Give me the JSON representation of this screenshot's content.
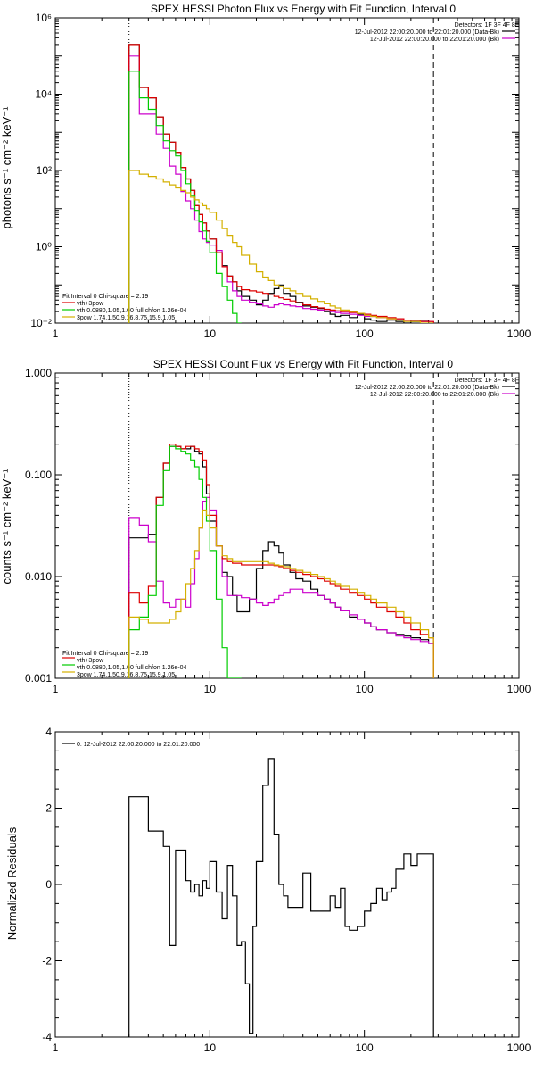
{
  "panels": [
    {
      "id": "photon",
      "title": "SPEX HESSI Photon Flux vs Energy with Fit Function, Interval 0",
      "ylabel": "photons s⁻¹ cm⁻² keV⁻¹",
      "yscale": "log",
      "ylim": [
        0.01,
        1000000
      ],
      "ytick_labels": [
        "10⁻²",
        "10⁰",
        "10²",
        "10⁴",
        "10⁶"
      ],
      "ytick_values": [
        0.01,
        1,
        100,
        10000,
        1000000
      ],
      "detectors_text": "Detectors: 1F 3F 4F 8F",
      "legend_right": [
        {
          "text": "12-Jul-2012 22:00:20.000 to 22:01:20.000 (Data-Bk)",
          "color": "#000000"
        },
        {
          "text": "12-Jul-2012 22:00:20.000 to 22:01:20.000 (Bk)",
          "color": "#cc00cc"
        }
      ],
      "legend_left_header": "Fit Interval 0   Chi-square = 2.19",
      "legend_left": [
        {
          "text": "vth+3pow",
          "color": "#dd0000"
        },
        {
          "text": "vth 0.0880,1.05,1.00  full chfon 1.26e-04",
          "color": "#00cc00"
        },
        {
          "text": "3pow 1.74,1.50,9.16,8.75,15.9,1.05",
          "color": "#d4b000"
        }
      ],
      "vlines": [
        3,
        280
      ]
    },
    {
      "id": "count",
      "title": "SPEX HESSI Count Flux vs Energy with Fit Function, Interval 0",
      "ylabel": "counts s⁻¹ cm⁻² keV⁻¹",
      "yscale": "log",
      "ylim": [
        0.001,
        1
      ],
      "ytick_labels": [
        "0.001",
        "0.010",
        "0.100",
        "1.000"
      ],
      "ytick_values": [
        0.001,
        0.01,
        0.1,
        1
      ],
      "detectors_text": "Detectors: 1F 3F 4F 8F",
      "legend_right": [
        {
          "text": "12-Jul-2012 22:00:20.000 to 22:01:20.000 (Data-Bk)",
          "color": "#000000"
        },
        {
          "text": "12-Jul-2012 22:00:20.000 to 22:01:20.000 (Bk)",
          "color": "#cc00cc"
        }
      ],
      "legend_left_header": "Fit Interval 0   Chi-square = 2.19",
      "legend_left": [
        {
          "text": "vth+3pow",
          "color": "#dd0000"
        },
        {
          "text": "vth 0.0880,1.05,1.00  full chfon 1.26e-04",
          "color": "#00cc00"
        },
        {
          "text": "3pow 1.74,1.50,9.16,8.75,15.9,1.05",
          "color": "#d4b000"
        }
      ],
      "vlines": [
        3,
        280
      ]
    },
    {
      "id": "resid",
      "title": "",
      "ylabel": "Normalized Residuals",
      "yscale": "linear",
      "ylim": [
        -4,
        4
      ],
      "ytick_labels": [
        "-4",
        "-2",
        "0",
        "2",
        "4"
      ],
      "ytick_values": [
        -4,
        -2,
        0,
        2,
        4
      ],
      "legend_resid": "0. 12-Jul-2012 22:00:20.000 to 22:01:20.000"
    }
  ],
  "xtick_labels": [
    "1",
    "10",
    "100",
    "1000"
  ],
  "chart_data": [
    {
      "type": "line",
      "title": "SPEX HESSI Photon Flux vs Energy with Fit Function, Interval 0",
      "xlabel": "",
      "ylabel": "photons s⁻¹ cm⁻² keV⁻¹",
      "xscale": "log",
      "yscale": "log",
      "xlim": [
        1,
        1000
      ],
      "ylim": [
        0.01,
        1000000
      ],
      "bin_edges": [
        3,
        3.5,
        4,
        4.5,
        5,
        5.5,
        6,
        6.5,
        7,
        7.5,
        8,
        8.5,
        9,
        9.5,
        10,
        11,
        12,
        13,
        14,
        15,
        16,
        18,
        20,
        22,
        24,
        26,
        28,
        30,
        33,
        36,
        40,
        45,
        50,
        55,
        60,
        65,
        70,
        80,
        90,
        100,
        110,
        120,
        140,
        160,
        180,
        200,
        230,
        260,
        280
      ],
      "series": [
        {
          "name": "12-Jul-2012 22:00:20.000 to 22:01:20.000 (Data-Bk)",
          "color": "#000000",
          "values": [
            200000,
            15000,
            8000,
            2500,
            900,
            550,
            300,
            120,
            60,
            30,
            12,
            7,
            4.2,
            2.6,
            1.6,
            0.7,
            0.32,
            0.17,
            0.12,
            0.07,
            0.05,
            0.04,
            0.03,
            0.04,
            0.06,
            0.08,
            0.1,
            0.06,
            0.05,
            0.035,
            0.028,
            0.026,
            0.024,
            0.02,
            0.017,
            0.015,
            0.016,
            0.014,
            0.017,
            0.013,
            0.012,
            0.011,
            0.012,
            0.011,
            0.01,
            0.011,
            0.012,
            0.01
          ]
        },
        {
          "name": "12-Jul-2012 22:00:20.000 to 22:01:20.000 (Bk)",
          "color": "#cc00cc",
          "values": [
            100000,
            3000,
            3000,
            900,
            380,
            130,
            80,
            28,
            16,
            10,
            5,
            2.5,
            1.6,
            1.3,
            1.1,
            0.8,
            0.3,
            0.12,
            0.07,
            0.05,
            0.04,
            0.035,
            0.032,
            0.028,
            0.026,
            0.03,
            0.032,
            0.03,
            0.028,
            0.027,
            0.024,
            0.023,
            0.022,
            0.021,
            0.02,
            0.019,
            0.018,
            0.017,
            0.016,
            0.015,
            0.015,
            0.014,
            0.013,
            0.013,
            0.012,
            0.012,
            0.011,
            0.011
          ]
        },
        {
          "name": "vth+3pow",
          "color": "#dd0000",
          "values": [
            200000,
            15000,
            8000,
            2500,
            900,
            550,
            300,
            120,
            60,
            30,
            12,
            7,
            4.2,
            2.6,
            1.6,
            0.7,
            0.3,
            0.17,
            0.12,
            0.09,
            0.075,
            0.07,
            0.065,
            0.06,
            0.055,
            0.05,
            0.046,
            0.042,
            0.038,
            0.034,
            0.03,
            0.027,
            0.025,
            0.023,
            0.022,
            0.021,
            0.02,
            0.019,
            0.018,
            0.017,
            0.016,
            0.015,
            0.014,
            0.013,
            0.012,
            0.012,
            0.011,
            0.011
          ]
        },
        {
          "name": "vth 0.0880,1.05,1.00  full chfon 1.26e-04",
          "color": "#00cc00",
          "values": [
            40000,
            8000,
            4000,
            1500,
            600,
            330,
            240,
            100,
            45,
            22,
            9,
            4.5,
            2.6,
            1.4,
            0.7,
            0.2,
            0.09,
            0.04,
            0.018,
            0.01
          ]
        },
        {
          "name": "3pow 1.74,1.50,9.16,8.75,15.9,1.05",
          "color": "#d4b000",
          "values": [
            100,
            80,
            70,
            60,
            50,
            42,
            35,
            30,
            26,
            20,
            17,
            14,
            12,
            10,
            8,
            5,
            3,
            2,
            1.3,
            1,
            0.6,
            0.35,
            0.22,
            0.16,
            0.13,
            0.1,
            0.09,
            0.08,
            0.07,
            0.06,
            0.05,
            0.043,
            0.037,
            0.032,
            0.028,
            0.025,
            0.022,
            0.02,
            0.018,
            0.016,
            0.015,
            0.014,
            0.013,
            0.012,
            0.011,
            0.011,
            0.01,
            0.01
          ]
        }
      ]
    },
    {
      "type": "line",
      "title": "SPEX HESSI Count Flux vs Energy with Fit Function, Interval 0",
      "xlabel": "",
      "ylabel": "counts s⁻¹ cm⁻² keV⁻¹",
      "xscale": "log",
      "yscale": "log",
      "xlim": [
        1,
        1000
      ],
      "ylim": [
        0.001,
        1
      ],
      "bin_edges": [
        3,
        3.5,
        4,
        4.5,
        5,
        5.5,
        6,
        6.5,
        7,
        7.5,
        8,
        8.5,
        9,
        9.5,
        10,
        11,
        12,
        13,
        14,
        15,
        16,
        18,
        20,
        22,
        24,
        26,
        28,
        30,
        33,
        36,
        40,
        45,
        50,
        55,
        60,
        65,
        70,
        80,
        90,
        100,
        110,
        120,
        140,
        160,
        180,
        200,
        230,
        260,
        280
      ],
      "series": [
        {
          "name": "12-Jul-2012 22:00:20.000 to 22:01:20.000 (Data-Bk)",
          "color": "#000000",
          "values": [
            0.024,
            0.024,
            0.026,
            0.06,
            0.13,
            0.19,
            0.19,
            0.18,
            0.18,
            0.19,
            0.17,
            0.16,
            0.12,
            0.065,
            0.035,
            0.02,
            0.011,
            0.01,
            0.0065,
            0.0045,
            0.0045,
            0.006,
            0.012,
            0.018,
            0.022,
            0.02,
            0.017,
            0.013,
            0.011,
            0.0095,
            0.009,
            0.0075,
            0.0065,
            0.006,
            0.0055,
            0.005,
            0.0046,
            0.004,
            0.0038,
            0.0035,
            0.0032,
            0.003,
            0.0028,
            0.0027,
            0.0026,
            0.0025,
            0.0024,
            0.0022
          ]
        },
        {
          "name": "12-Jul-2012 22:00:20.000 to 22:01:20.000 (Bk)",
          "color": "#cc00cc",
          "values": [
            0.038,
            0.032,
            0.022,
            0.009,
            0.0055,
            0.005,
            0.006,
            0.006,
            0.005,
            0.0085,
            0.015,
            0.03,
            0.055,
            0.06,
            0.045,
            0.02,
            0.01,
            0.0065,
            0.0065,
            0.0065,
            0.0062,
            0.006,
            0.0055,
            0.0052,
            0.0055,
            0.006,
            0.0065,
            0.007,
            0.0075,
            0.0075,
            0.007,
            0.007,
            0.0065,
            0.006,
            0.0055,
            0.005,
            0.0046,
            0.0042,
            0.0038,
            0.0035,
            0.0032,
            0.003,
            0.0028,
            0.0026,
            0.0025,
            0.0024,
            0.0023,
            0.0022
          ]
        },
        {
          "name": "vth+3pow",
          "color": "#dd0000",
          "values": [
            0.007,
            0.0055,
            0.008,
            0.06,
            0.13,
            0.2,
            0.19,
            0.18,
            0.19,
            0.19,
            0.18,
            0.17,
            0.14,
            0.08,
            0.04,
            0.02,
            0.015,
            0.014,
            0.0135,
            0.0135,
            0.013,
            0.013,
            0.013,
            0.013,
            0.013,
            0.0128,
            0.0125,
            0.012,
            0.0115,
            0.011,
            0.0105,
            0.01,
            0.0095,
            0.009,
            0.0085,
            0.008,
            0.0075,
            0.007,
            0.0065,
            0.006,
            0.0055,
            0.005,
            0.0045,
            0.004,
            0.0035,
            0.003,
            0.0027,
            0.0025
          ]
        },
        {
          "name": "vth 0.0880,1.05,1.00  full chfon 1.26e-04",
          "color": "#00cc00",
          "values": [
            0.003,
            0.004,
            0.0065,
            0.05,
            0.11,
            0.19,
            0.18,
            0.17,
            0.16,
            0.14,
            0.12,
            0.09,
            0.06,
            0.035,
            0.018,
            0.006,
            0.002,
            0.001,
            0.0008,
            0.0008
          ]
        },
        {
          "name": "3pow 1.74,1.50,9.16,8.75,15.9,1.05",
          "color": "#d4b000",
          "values": [
            0.004,
            0.0038,
            0.0035,
            0.0035,
            0.0035,
            0.0038,
            0.0045,
            0.006,
            0.0085,
            0.012,
            0.018,
            0.03,
            0.045,
            0.04,
            0.03,
            0.02,
            0.016,
            0.015,
            0.014,
            0.014,
            0.014,
            0.014,
            0.014,
            0.014,
            0.0135,
            0.013,
            0.0128,
            0.0125,
            0.012,
            0.0115,
            0.011,
            0.0105,
            0.01,
            0.0095,
            0.009,
            0.0085,
            0.008,
            0.0075,
            0.007,
            0.0065,
            0.006,
            0.0055,
            0.005,
            0.0045,
            0.004,
            0.0035,
            0.003,
            0.0025
          ]
        }
      ]
    },
    {
      "type": "line",
      "title": "",
      "xlabel": "",
      "ylabel": "Normalized Residuals",
      "xscale": "log",
      "yscale": "linear",
      "xlim": [
        1,
        1000
      ],
      "ylim": [
        -4,
        4
      ],
      "bin_edges": [
        3,
        4,
        5,
        5.5,
        6,
        7,
        7.5,
        8,
        8.5,
        9,
        9.5,
        10,
        11,
        12,
        13,
        14,
        15,
        16,
        17,
        18,
        19,
        20,
        22,
        24,
        26,
        28,
        30,
        32,
        36,
        40,
        45,
        50,
        55,
        60,
        65,
        70,
        75,
        80,
        90,
        100,
        110,
        120,
        130,
        140,
        150,
        160,
        180,
        200,
        220,
        260,
        280
      ],
      "series": [
        {
          "name": "0. 12-Jul-2012 22:00:20.000 to 22:01:20.000",
          "color": "#000000",
          "values": [
            2.3,
            1.4,
            1.0,
            -1.6,
            0.9,
            0.1,
            -0.2,
            0.0,
            -0.3,
            0.1,
            -0.1,
            0.6,
            -0.2,
            -0.9,
            0.5,
            -0.3,
            -1.6,
            -1.5,
            -2.6,
            -3.9,
            -1.1,
            0.6,
            2.6,
            3.3,
            1.3,
            0.0,
            -0.3,
            -0.6,
            -0.6,
            0.3,
            -0.7,
            -0.7,
            -0.7,
            -0.3,
            -0.6,
            -0.1,
            -1.1,
            -1.2,
            -1.1,
            -0.7,
            -0.5,
            -0.1,
            -0.4,
            -0.2,
            -0.1,
            0.4,
            0.8,
            0.5,
            0.8,
            0.8
          ]
        }
      ]
    }
  ]
}
